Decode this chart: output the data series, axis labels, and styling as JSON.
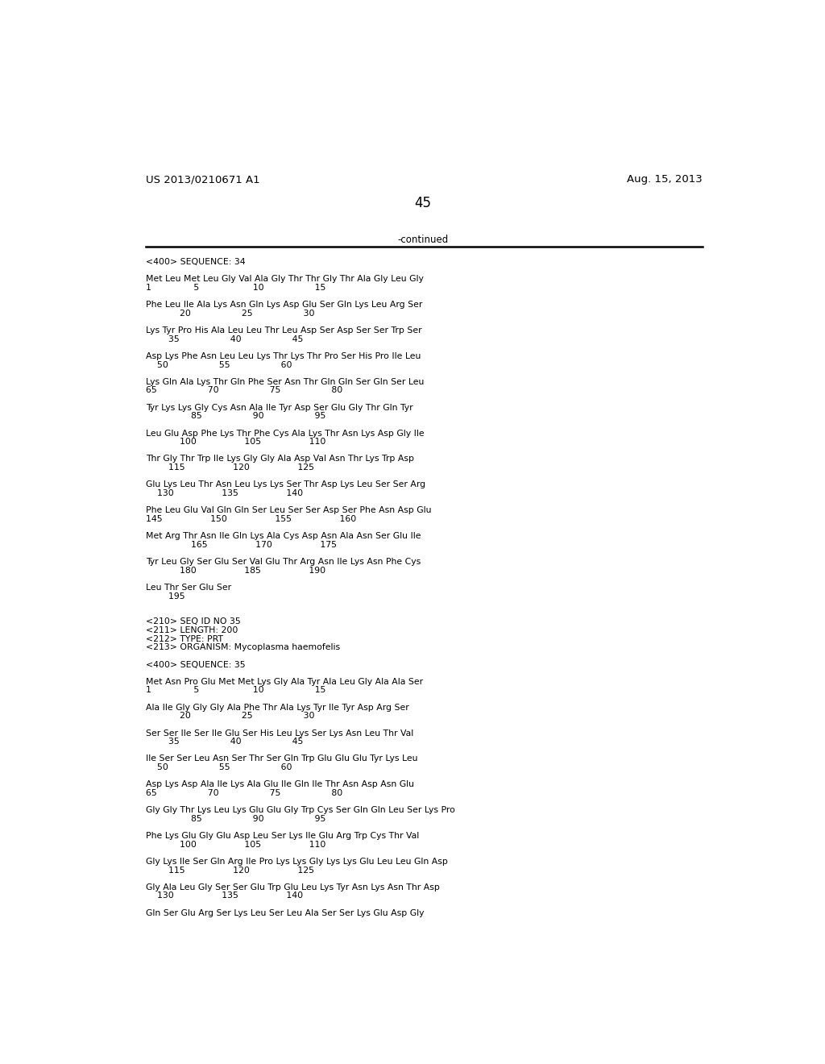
{
  "header_left": "US 2013/0210671 A1",
  "header_right": "Aug. 15, 2013",
  "page_number": "45",
  "continued_text": "-continued",
  "background_color": "#ffffff",
  "text_color": "#000000",
  "content_lines": [
    "<400> SEQUENCE: 34",
    "",
    "Met Leu Met Leu Gly Val Ala Gly Thr Thr Gly Thr Ala Gly Leu Gly",
    "1               5                   10                  15",
    "",
    "Phe Leu Ile Ala Lys Asn Gln Lys Asp Glu Ser Gln Lys Leu Arg Ser",
    "            20                  25                  30",
    "",
    "Lys Tyr Pro His Ala Leu Leu Thr Leu Asp Ser Asp Ser Ser Trp Ser",
    "        35                  40                  45",
    "",
    "Asp Lys Phe Asn Leu Leu Lys Thr Lys Thr Pro Ser His Pro Ile Leu",
    "    50                  55                  60",
    "",
    "Lys Gln Ala Lys Thr Gln Phe Ser Asn Thr Gln Gln Ser Gln Ser Leu",
    "65                  70                  75                  80",
    "",
    "Tyr Lys Lys Gly Cys Asn Ala Ile Tyr Asp Ser Glu Gly Thr Gln Tyr",
    "                85                  90                  95",
    "",
    "Leu Glu Asp Phe Lys Thr Phe Cys Ala Lys Thr Asn Lys Asp Gly Ile",
    "            100                 105                 110",
    "",
    "Thr Gly Thr Trp Ile Lys Gly Gly Ala Asp Val Asn Thr Lys Trp Asp",
    "        115                 120                 125",
    "",
    "Glu Lys Leu Thr Asn Leu Lys Lys Ser Thr Asp Lys Leu Ser Ser Arg",
    "    130                 135                 140",
    "",
    "Phe Leu Glu Val Gln Gln Ser Leu Ser Ser Asp Ser Phe Asn Asp Glu",
    "145                 150                 155                 160",
    "",
    "Met Arg Thr Asn Ile Gln Lys Ala Cys Asp Asn Ala Asn Ser Glu Ile",
    "                165                 170                 175",
    "",
    "Tyr Leu Gly Ser Glu Ser Val Glu Thr Arg Asn Ile Lys Asn Phe Cys",
    "            180                 185                 190",
    "",
    "Leu Thr Ser Glu Ser",
    "        195",
    "",
    "",
    "<210> SEQ ID NO 35",
    "<211> LENGTH: 200",
    "<212> TYPE: PRT",
    "<213> ORGANISM: Mycoplasma haemofelis",
    "",
    "<400> SEQUENCE: 35",
    "",
    "Met Asn Pro Glu Met Met Lys Gly Ala Tyr Ala Leu Gly Ala Ala Ser",
    "1               5                   10                  15",
    "",
    "Ala Ile Gly Gly Gly Ala Phe Thr Ala Lys Tyr Ile Tyr Asp Arg Ser",
    "            20                  25                  30",
    "",
    "Ser Ser Ile Ser Ile Glu Ser His Leu Lys Ser Lys Asn Leu Thr Val",
    "        35                  40                  45",
    "",
    "Ile Ser Ser Leu Asn Ser Thr Ser Gln Trp Glu Glu Glu Tyr Lys Leu",
    "    50                  55                  60",
    "",
    "Asp Lys Asp Ala Ile Lys Ala Glu Ile Gln Ile Thr Asn Asp Asn Glu",
    "65                  70                  75                  80",
    "",
    "Gly Gly Thr Lys Leu Lys Glu Glu Gly Trp Cys Ser Gln Gln Leu Ser Lys Pro",
    "                85                  90                  95",
    "",
    "Phe Lys Glu Gly Glu Asp Leu Ser Lys Ile Glu Arg Trp Cys Thr Val",
    "            100                 105                 110",
    "",
    "Gly Lys Ile Ser Gln Arg Ile Pro Lys Lys Gly Lys Lys Glu Leu Leu Gln Asp",
    "        115                 120                 125",
    "",
    "Gly Ala Leu Gly Ser Ser Glu Trp Glu Leu Lys Tyr Asn Lys Asn Thr Asp",
    "    130                 135                 140",
    "",
    "Gln Ser Glu Arg Ser Lys Leu Ser Leu Ala Ser Ser Lys Glu Asp Gly"
  ]
}
